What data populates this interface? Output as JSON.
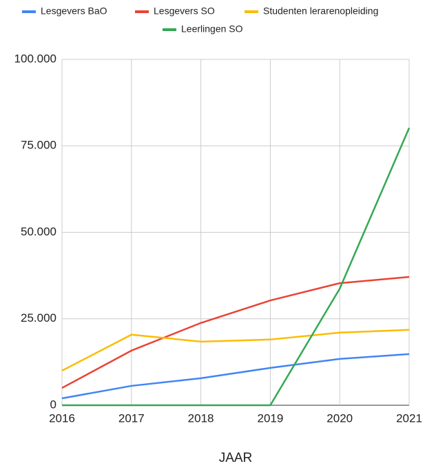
{
  "chart_data": {
    "type": "line",
    "x": [
      2016,
      2017,
      2018,
      2019,
      2020,
      2021
    ],
    "series": [
      {
        "name": "Lesgevers BaO",
        "color": "#4285f4",
        "values": [
          2000,
          5600,
          7800,
          10800,
          13400,
          14800
        ]
      },
      {
        "name": "Lesgevers SO",
        "color": "#ea4335",
        "values": [
          5000,
          15800,
          23800,
          30300,
          35300,
          37100
        ]
      },
      {
        "name": "Studenten lerarenopleiding",
        "color": "#fbbc04",
        "values": [
          10000,
          20400,
          18400,
          19000,
          21000,
          21800
        ]
      },
      {
        "name": "Leerlingen SO",
        "color": "#34a853",
        "values": [
          0,
          0,
          0,
          0,
          33700,
          80200
        ]
      }
    ],
    "xlabel": "JAAR",
    "xlim": [
      2016,
      2021
    ],
    "xticks": [
      2016,
      2017,
      2018,
      2019,
      2020,
      2021
    ],
    "ylim": [
      0,
      100000
    ],
    "yticks": [
      0,
      {
        "value": 25000,
        "label": "25.000"
      },
      {
        "value": 50000,
        "label": "50.000"
      },
      {
        "value": 75000,
        "label": "75.000"
      },
      {
        "value": 100000,
        "label": "100.000"
      }
    ],
    "grid": true,
    "legend": "top"
  }
}
